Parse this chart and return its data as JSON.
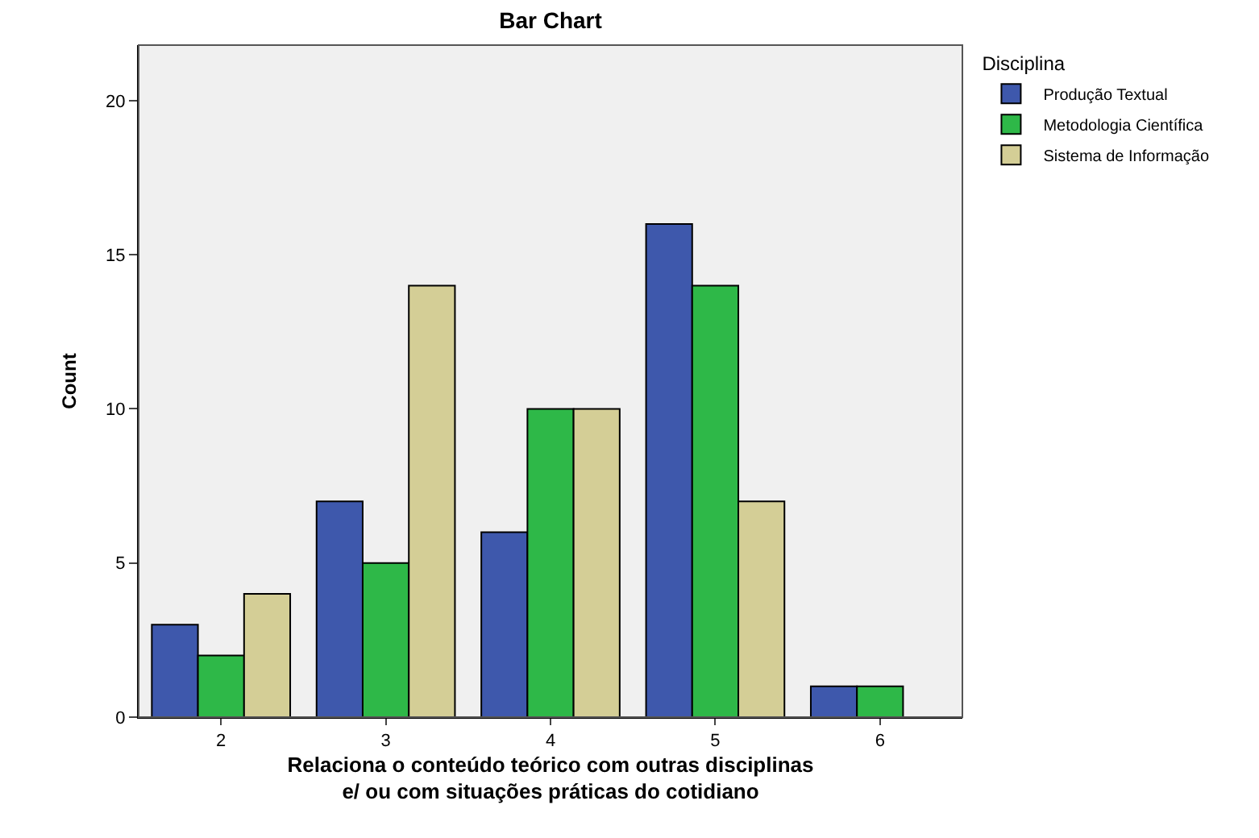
{
  "chart_data": {
    "type": "bar",
    "title": "Bar Chart",
    "xlabel": "Relaciona o conteúdo teórico com outras disciplinas\ne/ ou com situações práticas do cotidiano",
    "ylabel": "Count",
    "legend_title": "Disciplina",
    "categories": [
      "2",
      "3",
      "4",
      "5",
      "6"
    ],
    "series": [
      {
        "name": "Produção Textual",
        "color": "#3e58ac",
        "values": [
          3,
          7,
          6,
          16,
          1
        ]
      },
      {
        "name": "Metodologia Científica",
        "color": "#2eb848",
        "values": [
          2,
          5,
          10,
          14,
          1
        ]
      },
      {
        "name": "Sistema de Informação",
        "color": "#d4ce96",
        "values": [
          4,
          14,
          10,
          7,
          null
        ]
      }
    ],
    "ylim": [
      0,
      21.8
    ],
    "yticks": [
      0,
      5,
      10,
      15,
      20
    ],
    "grid": false,
    "legend": "top right"
  }
}
